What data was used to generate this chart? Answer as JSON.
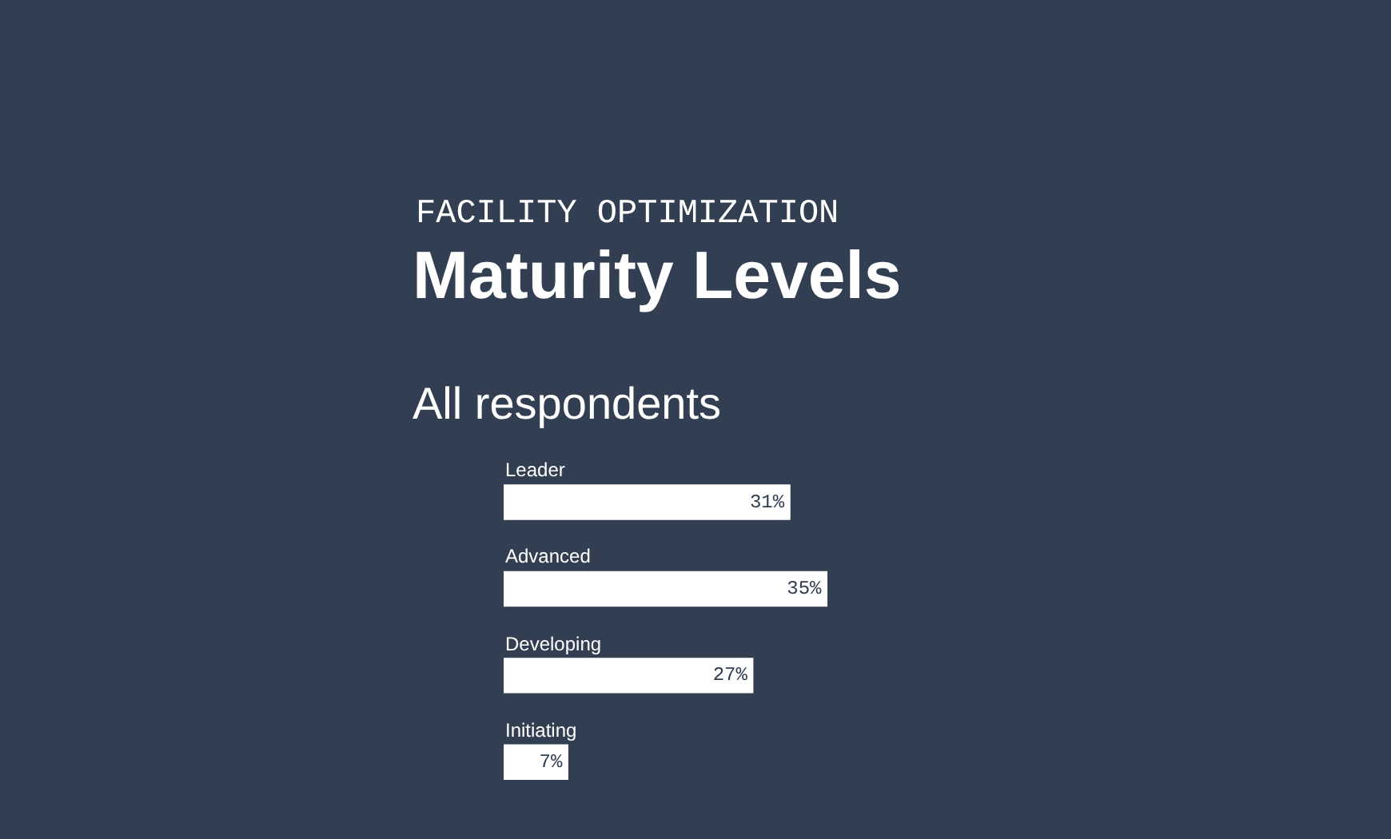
{
  "chart_data": {
    "type": "bar",
    "orientation": "horizontal",
    "title": "Maturity Levels",
    "subtitle": "FACILITY OPTIMIZATION",
    "annotations": [
      "All respondents"
    ],
    "categories": [
      "Leader",
      "Advanced",
      "Developing",
      "Initiating"
    ],
    "values": [
      31,
      35,
      27,
      7
    ],
    "value_labels": [
      "31%",
      "35%",
      "27%",
      "7%"
    ],
    "color": "#ffffff"
  }
}
